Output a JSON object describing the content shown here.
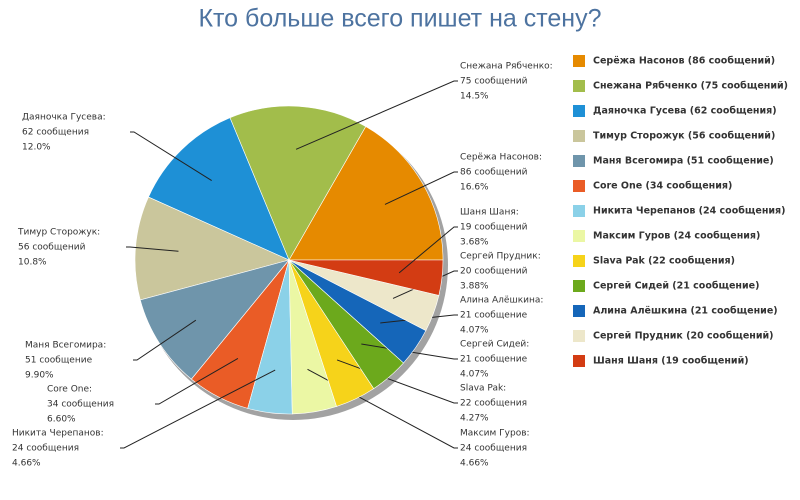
{
  "chart_data": {
    "type": "pie",
    "title": "Кто больше всего пишет на стену?",
    "labels": [
      "Серёжа Насонов:",
      "Снежана Рябченко:",
      "Даяночка Гусева:",
      "Тимур Сторожук:",
      "Маня Всегомира:",
      "Core One:",
      "Никита Черепанов:",
      "Максим Гуров:",
      "Slava Pak:",
      "Сергей Сидей:",
      "Алина Алёшкина:",
      "Сергей Прудник:",
      "Шаня Шаня:"
    ],
    "legend_labels": [
      "Серёжа Насонов (86 сообщений)",
      "Снежана Рябченко (75 сообщений)",
      "Даяночка Гусева (62 сообщения)",
      "Тимур Сторожук (56 сообщений)",
      "Маня Всегомира (51 сообщение)",
      "Core One (34 сообщения)",
      "Никита Черепанов (24 сообщения)",
      "Максим Гуров (24 сообщения)",
      "Slava Pak (22 сообщения)",
      "Сергей Сидей (21 сообщение)",
      "Алина Алёшкина (21 сообщение)",
      "Сергей Прудник (20 сообщений)",
      "Шаня Шаня (19 сообщений)"
    ],
    "values": [
      86,
      75,
      62,
      56,
      51,
      34,
      24,
      24,
      22,
      21,
      21,
      20,
      19
    ],
    "value_labels": [
      "86 сообщений",
      "75 сообщений",
      "62 сообщения",
      "56 сообщений",
      "51 сообщение",
      "34 сообщения",
      "24 сообщения",
      "24 сообщения",
      "22 сообщения",
      "21 сообщение",
      "21 сообщение",
      "20 сообщений",
      "19 сообщений"
    ],
    "percentages": [
      16.6,
      14.5,
      12.0,
      10.8,
      9.9,
      6.6,
      4.66,
      4.66,
      4.27,
      4.07,
      4.07,
      3.88,
      3.68
    ],
    "percentage_labels": [
      "16.6%",
      "14.5%",
      "12.0%",
      "10.8%",
      "9.90%",
      "6.60%",
      "4.66%",
      "4.66%",
      "4.27%",
      "4.07%",
      "4.07%",
      "3.88%",
      "3.68%"
    ],
    "colors": [
      "#e68a00",
      "#a2bd4b",
      "#1e90d6",
      "#cac69c",
      "#6f95ab",
      "#ea5c26",
      "#8bd1e8",
      "#ebf7a4",
      "#f6d31a",
      "#6ca91c",
      "#1566b9",
      "#ede7ca",
      "#d33c13"
    ]
  }
}
